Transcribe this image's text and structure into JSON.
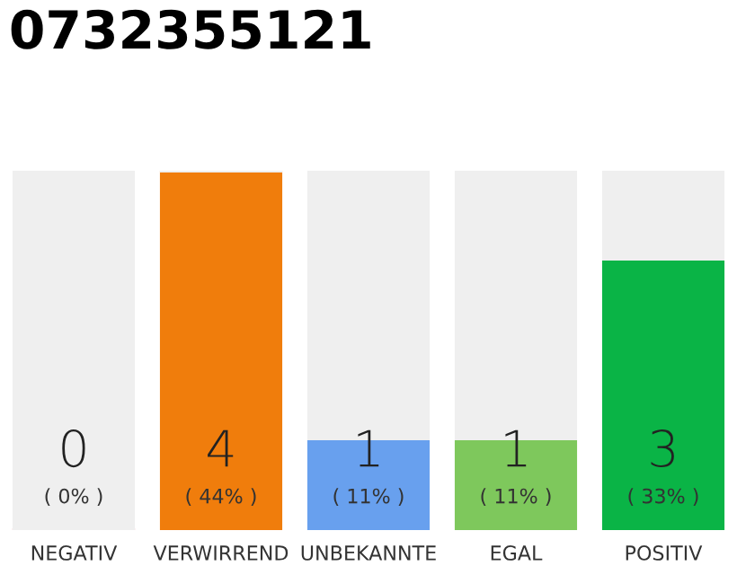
{
  "chart_data": {
    "type": "bar",
    "title": "0732355121",
    "stacked": true,
    "ylim": [
      0,
      4
    ],
    "tick_labels": "x",
    "categories": [
      "NEGATIV",
      "VERWIRREND",
      "UNBEKANNTE",
      "EGAL",
      "POSITIV"
    ],
    "series": [
      {
        "colors": [
          "#e8203c",
          "#f07d0c",
          "#68a0ee",
          "#7ec85c",
          "#0ab446"
        ],
        "values": [
          0,
          4,
          1,
          1,
          3
        ],
        "value_labels": [
          "0",
          "4",
          "1",
          "1",
          "3"
        ]
      },
      {
        "color": "#efefef",
        "values": [
          4,
          0,
          3,
          3,
          1
        ]
      }
    ],
    "annotations": [
      "( 0% )",
      "( 44% )",
      "( 11% )",
      "( 11% )",
      "( 33% )"
    ],
    "legend": false
  }
}
